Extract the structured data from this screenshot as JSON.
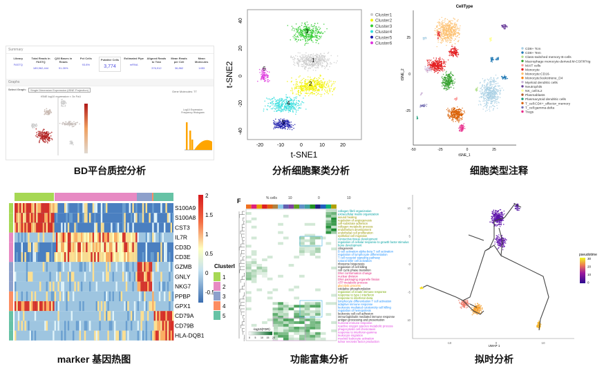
{
  "captions": [
    "BD平台质控分析",
    "分析细胞聚类分析",
    "细胞类型注释",
    "marker 基因热图",
    "功能富集分析",
    "拟时分析"
  ],
  "qc": {
    "summary_title": "Summary",
    "graphs_title": "Graphs",
    "cols": [
      "Library",
      "Total Reads in FASTQ",
      "Q30 Bases in Reads",
      "Pct Cells",
      "Putative Cells",
      "Estimated Pipe",
      "Aligned Reads to Tran",
      "Mean Reads per Cell",
      "Mean Molecules"
    ],
    "values": [
      "FASTQ",
      "189,962,444",
      "91.26%",
      "93.8%",
      "3,774",
      "mRNA",
      "376,912",
      "36,862",
      "1453"
    ],
    "putative_cells_label": "Putative Cells",
    "putative_cells": "3,774",
    "select_label": "Select Graph:",
    "select_value": "Single Dimension Expression (tSNE Projection)",
    "plot_title": "tSNE log10 expression < 3x FoU",
    "hist_title": "Log10 Expression Frequency Histogram",
    "gene_label": "Gene Molecules: TT"
  },
  "clusters": {
    "title": "",
    "xlabel": "t-SNE1",
    "ylabel": "t-SNE2",
    "xticks": [
      "-20",
      "-10",
      "0",
      "10",
      "20"
    ],
    "yticks": [
      "40",
      "20",
      "0",
      "-20",
      "-40"
    ],
    "legend": [
      {
        "name": "Cluster1",
        "color": "#cccccc"
      },
      {
        "name": "Cluster2",
        "color": "#f2f200"
      },
      {
        "name": "Cluster3",
        "color": "#33cc33"
      },
      {
        "name": "Cluster4",
        "color": "#33dddd"
      },
      {
        "name": "Cluster5",
        "color": "#1a1aaa"
      },
      {
        "name": "Cluster6",
        "color": "#dd33dd"
      }
    ],
    "labels": [
      "1",
      "2",
      "3",
      "4",
      "5",
      "6"
    ]
  },
  "celltype": {
    "title": "CellType",
    "xlabel": "tSNE_1",
    "ylabel": "tSNE_2",
    "xticks": [
      "-50",
      "-25",
      "0",
      "25"
    ],
    "yticks": [
      "25",
      "0",
      "-25"
    ],
    "legend": [
      {
        "name": "CD8+ Tcm",
        "color": "#a6cee3"
      },
      {
        "name": "CD8+ Tem",
        "color": "#1f78b4"
      },
      {
        "name": "Class-switched memory B-cells",
        "color": "#b2df8a"
      },
      {
        "name": "Macrophage monocyte-derived:M-CSF/IFNg",
        "color": "#33a02c"
      },
      {
        "name": "MAIT cells",
        "color": "#fb9a99"
      },
      {
        "name": "Monocyte",
        "color": "#e31a1c"
      },
      {
        "name": "Monocyte:CD16-",
        "color": "#fdbf6f"
      },
      {
        "name": "Monocyte:leukotriene_D4",
        "color": "#ff7f00"
      },
      {
        "name": "Myeloid dendritic cells",
        "color": "#cab2d6"
      },
      {
        "name": "Neutrophils",
        "color": "#6a3d9a"
      },
      {
        "name": "NK_cell:IL2",
        "color": "#ffff99"
      },
      {
        "name": "Plasmablasts",
        "color": "#b15928"
      },
      {
        "name": "Plasmacytoid dendritic cells",
        "color": "#1b9e77"
      },
      {
        "name": "T_cell:CD4+_effector_memory",
        "color": "#d95f02"
      },
      {
        "name": "T_cell:gamma-delta",
        "color": "#7570b3"
      },
      {
        "name": "Tregs",
        "color": "#e7298a"
      }
    ]
  },
  "heatmap": {
    "genes": [
      "S100A9",
      "S100A8",
      "CST3",
      "IL7R",
      "CD3D",
      "CD3E",
      "GZMB",
      "GNLY",
      "NKG7",
      "PPBP",
      "GPX1",
      "CD79A",
      "CD79B",
      "HLA-DQB1"
    ],
    "scale": [
      "2",
      "1.5",
      "1",
      "0.5",
      "0",
      "-0.5"
    ],
    "legend_title": "ClusterID",
    "clusters": [
      {
        "id": "1",
        "color": "#a6d854"
      },
      {
        "id": "2",
        "color": "#e78ac3"
      },
      {
        "id": "3",
        "color": "#8da0cb"
      },
      {
        "id": "4",
        "color": "#fc8d62"
      },
      {
        "id": "5",
        "color": "#66c2a5"
      }
    ]
  },
  "enrich": {
    "panel": "F",
    "top": [
      "% cells",
      "10",
      "0",
      "10"
    ],
    "legend_title": "-log10(FDR)",
    "legend_ticks": [
      "0",
      "5",
      "10",
      "15",
      "20"
    ],
    "terms": [
      {
        "t": "collagen fibril organization",
        "c": "#00a0a0"
      },
      {
        "t": "extracellular matrix organization",
        "c": "#00a0a0"
      },
      {
        "t": "wound healing",
        "c": "#999900"
      },
      {
        "t": "regulation of angiogenesis",
        "c": "#999900"
      },
      {
        "t": "cell-substrate adhesion",
        "c": "#999900"
      },
      {
        "t": "collagen metabolic process",
        "c": "#999900"
      },
      {
        "t": "endothelium development",
        "c": "#999900"
      },
      {
        "t": "endothelial cell proliferation",
        "c": "#999900"
      },
      {
        "t": "epithelial cell migration",
        "c": "#999900"
      },
      {
        "t": "connective tissue development",
        "c": "#00a0a0"
      },
      {
        "t": "regulation of cellular response to growth factor stimulus",
        "c": "#00a0a0"
      },
      {
        "t": "bone development",
        "c": "#00a0a0"
      },
      {
        "t": "ciliogenesis",
        "c": "#222"
      },
      {
        "t": "B cell activation  alpha-beta T cell activation",
        "c": "#1e90ff"
      },
      {
        "t": "regulation of lymphocyte differentiation",
        "c": "#1e90ff"
      },
      {
        "t": "T cell receptor signaling pathway",
        "c": "#1e90ff"
      },
      {
        "t": "natural killer cell activation",
        "c": "#1e90ff"
      },
      {
        "t": "ribosome biogenesis",
        "c": "#222"
      },
      {
        "t": "regulation of cell killing",
        "c": "#222"
      },
      {
        "t": "cell cycle phase transition",
        "c": "#222"
      },
      {
        "t": "DNA conformation change",
        "c": "#e0207a"
      },
      {
        "t": "nuclear division",
        "c": "#e0207a"
      },
      {
        "t": "DNA packaging      organelle fission",
        "c": "#e0207a"
      },
      {
        "t": "ATP metabolic process",
        "c": "#e0207a"
      },
      {
        "t": "glycolytic process",
        "c": "#ff8c00"
      },
      {
        "t": "oxidative phosphorylation",
        "c": "#222"
      },
      {
        "t": "regulation of innate immune response",
        "c": "#77aa00"
      },
      {
        "t": "response to type I interferon",
        "c": "#77aa00"
      },
      {
        "t": "response to interferon-beta",
        "c": "#77aa00"
      },
      {
        "t": "lymphocyte differentiation   T cell activation",
        "c": "#1e90ff"
      },
      {
        "t": "adaptive immune response",
        "c": "#1e90ff"
      },
      {
        "t": "leukocyte mediated cytotoxicity   cell killing",
        "c": "#1e90ff"
      },
      {
        "t": "regulation of hemopoiesis",
        "c": "#1e90ff"
      },
      {
        "t": "leukocyte cell-cell adhesion",
        "c": "#222"
      },
      {
        "t": "immunoglobulin mediated immune response",
        "c": "#222"
      },
      {
        "t": "antigen processing and presentation",
        "c": "#222"
      },
      {
        "t": "humoral immune response",
        "c": "#e040e0"
      },
      {
        "t": "reactive oxygen species metabolic process",
        "c": "#e040e0"
      },
      {
        "t": "phagocytosis       cell chemotaxis",
        "c": "#e040e0"
      },
      {
        "t": "response to interferon-gamma",
        "c": "#e040e0"
      },
      {
        "t": "leukocyte migration",
        "c": "#e040e0"
      },
      {
        "t": "myeloid leukocyte activation",
        "c": "#e040e0"
      },
      {
        "t": "tumor necrosis factor production",
        "c": "#e040e0"
      }
    ]
  },
  "pseudo": {
    "xlabel": "UMAP 1",
    "ylabel": "UMAP 2",
    "xticks": [
      "-10",
      "0",
      "10"
    ],
    "yticks": [
      "10",
      "5",
      "0",
      "-5",
      "-10"
    ],
    "legend_title": "pseudotime",
    "legend_ticks": [
      "30",
      "20",
      "10",
      "0"
    ]
  }
}
